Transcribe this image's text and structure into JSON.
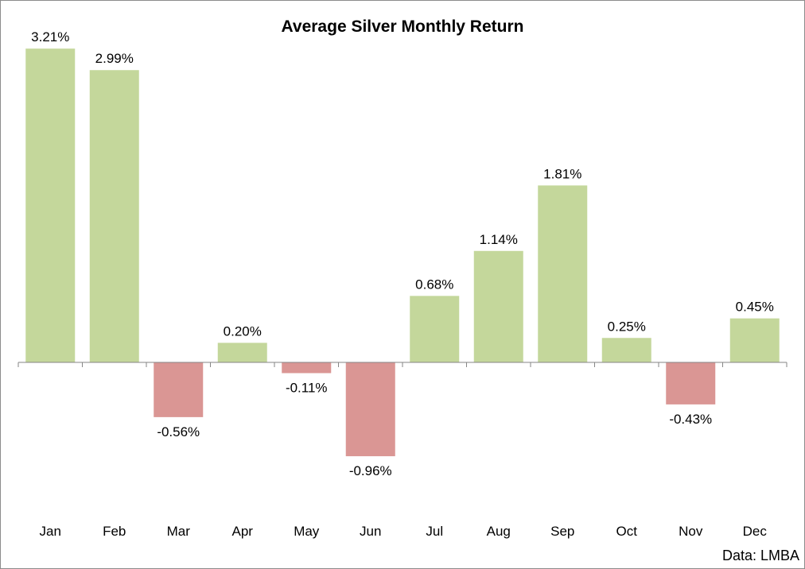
{
  "chart_data": {
    "type": "bar",
    "title": "Average Silver Monthly Return",
    "categories": [
      "Jan",
      "Feb",
      "Mar",
      "Apr",
      "May",
      "Jun",
      "Jul",
      "Aug",
      "Sep",
      "Oct",
      "Nov",
      "Dec"
    ],
    "values": [
      3.21,
      2.99,
      -0.56,
      0.2,
      -0.11,
      -0.96,
      0.68,
      1.14,
      1.81,
      0.25,
      -0.43,
      0.45
    ],
    "value_labels": [
      "3.21%",
      "2.99%",
      "-0.56%",
      "0.20%",
      "-0.11%",
      "-0.96%",
      "0.68%",
      "1.14%",
      "1.81%",
      "0.25%",
      "-0.43%",
      "0.45%"
    ],
    "xlabel": "",
    "ylabel": "",
    "ylim": [
      -1.6,
      3.4
    ],
    "grid": false,
    "colors": {
      "positive": "#c4d79b",
      "negative": "#da9694",
      "axis": "#868686"
    },
    "source": "Data: LMBA"
  }
}
